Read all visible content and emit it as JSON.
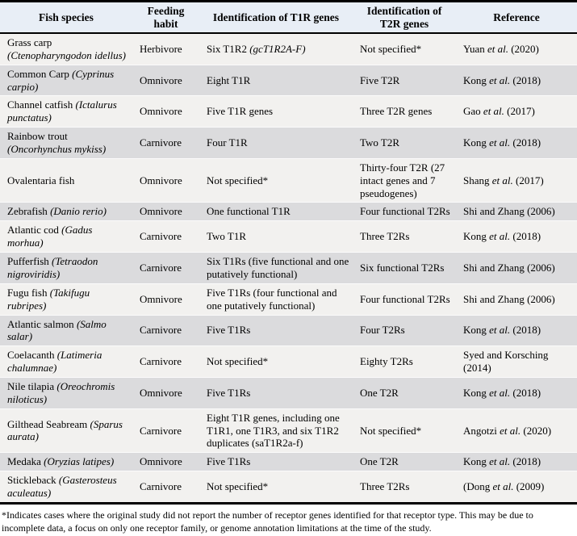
{
  "colors": {
    "header_bg": "#e8eef6",
    "row_light": "#f2f1ef",
    "row_dark": "#dbdbdd",
    "border": "#000000"
  },
  "table": {
    "headers": [
      "Fish species",
      "Feeding habit",
      "Identification of T1R genes",
      "Identification of T2R genes",
      "Reference"
    ],
    "rows": [
      {
        "species": [
          {
            "t": "Grass carp "
          },
          {
            "t": "(Ctenopharyngodon idellus)",
            "i": true
          }
        ],
        "habit": [
          {
            "t": "Herbivore"
          }
        ],
        "t1r": [
          {
            "t": "Six T1R2 "
          },
          {
            "t": "(gcT1R2A-F)",
            "i": true
          }
        ],
        "t2r": [
          {
            "t": "Not specified*"
          }
        ],
        "ref": [
          {
            "t": "Yuan "
          },
          {
            "t": "et al.",
            "i": true
          },
          {
            "t": " (2020)"
          }
        ]
      },
      {
        "species": [
          {
            "t": "Common Carp "
          },
          {
            "t": "(Cyprinus carpio)",
            "i": true
          }
        ],
        "habit": [
          {
            "t": "Omnivore"
          }
        ],
        "t1r": [
          {
            "t": "Eight T1R"
          }
        ],
        "t2r": [
          {
            "t": "Five T2R"
          }
        ],
        "ref": [
          {
            "t": "Kong "
          },
          {
            "t": "et al.",
            "i": true
          },
          {
            "t": " (2018)"
          }
        ]
      },
      {
        "species": [
          {
            "t": "Channel catfish "
          },
          {
            "t": "(Ictalurus punctatus)",
            "i": true
          }
        ],
        "habit": [
          {
            "t": "Omnivore"
          }
        ],
        "t1r": [
          {
            "t": "Five T1R genes"
          }
        ],
        "t2r": [
          {
            "t": "Three T2R genes"
          }
        ],
        "ref": [
          {
            "t": "Gao "
          },
          {
            "t": "et al.",
            "i": true
          },
          {
            "t": " (2017)"
          }
        ]
      },
      {
        "species": [
          {
            "t": "Rainbow trout "
          },
          {
            "t": "(Oncorhynchus mykiss)",
            "i": true
          }
        ],
        "habit": [
          {
            "t": "Carnivore"
          }
        ],
        "t1r": [
          {
            "t": "Four T1R"
          }
        ],
        "t2r": [
          {
            "t": "Two T2R"
          }
        ],
        "ref": [
          {
            "t": "Kong "
          },
          {
            "t": "et al.",
            "i": true
          },
          {
            "t": " (2018)"
          }
        ]
      },
      {
        "species": [
          {
            "t": "Ovalentaria fish"
          }
        ],
        "habit": [
          {
            "t": "Omnivore"
          }
        ],
        "t1r": [
          {
            "t": "Not specified*"
          }
        ],
        "t2r": [
          {
            "t": "Thirty-four T2R (27 intact genes and 7 pseudogenes)"
          }
        ],
        "ref": [
          {
            "t": "Shang "
          },
          {
            "t": "et al.",
            "i": true
          },
          {
            "t": " (2017)"
          }
        ]
      },
      {
        "species": [
          {
            "t": "Zebrafish "
          },
          {
            "t": "(Danio rerio)",
            "i": true
          }
        ],
        "habit": [
          {
            "t": "Omnivore"
          }
        ],
        "t1r": [
          {
            "t": "One functional T1R"
          }
        ],
        "t2r": [
          {
            "t": "Four functional T2Rs"
          }
        ],
        "ref": [
          {
            "t": "Shi and Zhang (2006)"
          }
        ]
      },
      {
        "species": [
          {
            "t": "Atlantic cod "
          },
          {
            "t": "(Gadus morhua)",
            "i": true
          }
        ],
        "habit": [
          {
            "t": "Carnivore"
          }
        ],
        "t1r": [
          {
            "t": "Two T1R"
          }
        ],
        "t2r": [
          {
            "t": "Three T2Rs"
          }
        ],
        "ref": [
          {
            "t": "Kong "
          },
          {
            "t": "et al.",
            "i": true
          },
          {
            "t": " (2018)"
          }
        ]
      },
      {
        "species": [
          {
            "t": "Pufferfish "
          },
          {
            "t": "(Tetraodon nigroviridis)",
            "i": true
          }
        ],
        "habit": [
          {
            "t": "Carnivore"
          }
        ],
        "t1r": [
          {
            "t": "Six T1Rs (five functional and one putatively functional)"
          }
        ],
        "t2r": [
          {
            "t": "Six functional T2Rs"
          }
        ],
        "ref": [
          {
            "t": "Shi and Zhang (2006)"
          }
        ]
      },
      {
        "species": [
          {
            "t": "Fugu fish "
          },
          {
            "t": "(Takifugu rubripes)",
            "i": true
          }
        ],
        "habit": [
          {
            "t": "Omnivore"
          }
        ],
        "t1r": [
          {
            "t": "Five T1Rs (four functional and one putatively functional)"
          }
        ],
        "t2r": [
          {
            "t": "Four functional T2Rs"
          }
        ],
        "ref": [
          {
            "t": "Shi and Zhang (2006)"
          }
        ]
      },
      {
        "species": [
          {
            "t": "Atlantic salmon "
          },
          {
            "t": "(Salmo salar)",
            "i": true
          }
        ],
        "habit": [
          {
            "t": "Carnivore"
          }
        ],
        "t1r": [
          {
            "t": "Five T1Rs"
          }
        ],
        "t2r": [
          {
            "t": "Four T2Rs"
          }
        ],
        "ref": [
          {
            "t": "Kong "
          },
          {
            "t": "et al.",
            "i": true
          },
          {
            "t": " (2018)"
          }
        ]
      },
      {
        "species": [
          {
            "t": "Coelacanth "
          },
          {
            "t": "(Latimeria chalumnae)",
            "i": true
          }
        ],
        "habit": [
          {
            "t": "Carnivore"
          }
        ],
        "t1r": [
          {
            "t": "Not specified*"
          }
        ],
        "t2r": [
          {
            "t": "Eighty T2Rs"
          }
        ],
        "ref": [
          {
            "t": "Syed and Korsching (2014)"
          }
        ]
      },
      {
        "species": [
          {
            "t": "Nile tilapia "
          },
          {
            "t": "(Oreochromis niloticus)",
            "i": true
          }
        ],
        "habit": [
          {
            "t": "Omnivore"
          }
        ],
        "t1r": [
          {
            "t": "Five T1Rs"
          }
        ],
        "t2r": [
          {
            "t": "One T2R"
          }
        ],
        "ref": [
          {
            "t": "Kong "
          },
          {
            "t": "et al.",
            "i": true
          },
          {
            "t": " (2018)"
          }
        ]
      },
      {
        "species": [
          {
            "t": "Gilthead Seabream "
          },
          {
            "t": "(Sparus aurata)",
            "i": true
          }
        ],
        "habit": [
          {
            "t": "Carnivore"
          }
        ],
        "t1r": [
          {
            "t": "Eight T1R genes, including one T1R1, one T1R3, and six T1R2 duplicates (saT1R2a-f)"
          }
        ],
        "t2r": [
          {
            "t": "Not specified*"
          }
        ],
        "ref": [
          {
            "t": "Angotzi "
          },
          {
            "t": "et al.",
            "i": true
          },
          {
            "t": " (2020)"
          }
        ]
      },
      {
        "species": [
          {
            "t": "Medaka "
          },
          {
            "t": "(Oryzias latipes)",
            "i": true
          }
        ],
        "habit": [
          {
            "t": "Omnivore"
          }
        ],
        "t1r": [
          {
            "t": "Five T1Rs"
          }
        ],
        "t2r": [
          {
            "t": "One T2R"
          }
        ],
        "ref": [
          {
            "t": "Kong "
          },
          {
            "t": "et al.",
            "i": true
          },
          {
            "t": " (2018)"
          }
        ]
      },
      {
        "species": [
          {
            "t": "Stickleback "
          },
          {
            "t": "(Gasterosteus aculeatus)",
            "i": true
          }
        ],
        "habit": [
          {
            "t": "Carnivore"
          }
        ],
        "t1r": [
          {
            "t": "Not specified*"
          }
        ],
        "t2r": [
          {
            "t": "Three T2Rs"
          }
        ],
        "ref": [
          {
            "t": "(Dong "
          },
          {
            "t": "et al.",
            "i": true
          },
          {
            "t": " (2009)"
          }
        ]
      }
    ]
  },
  "footnote": "*Indicates cases where the original study did not report the number of receptor genes identified for that receptor type. This may be due to incomplete data, a focus on only one receptor family, or genome annotation limitations at the time of the study."
}
